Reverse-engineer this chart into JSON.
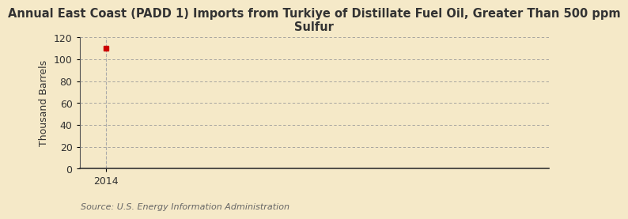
{
  "title": "Annual East Coast (PADD 1) Imports from Turkiye of Distillate Fuel Oil, Greater Than 500 ppm\nSulfur",
  "ylabel": "Thousand Barrels",
  "source": "Source: U.S. Energy Information Administration",
  "x_data": [
    2014
  ],
  "y_data": [
    110
  ],
  "xlim": [
    2013.4,
    2024.0
  ],
  "ylim": [
    0,
    120
  ],
  "yticks": [
    0,
    20,
    40,
    60,
    80,
    100,
    120
  ],
  "xticks": [
    2014
  ],
  "data_color": "#cc0000",
  "background_color": "#f5e9c8",
  "plot_bg_color": "#f5e9c8",
  "grid_color": "#999999",
  "vline_color": "#aaaaaa",
  "title_fontsize": 10.5,
  "axis_fontsize": 9,
  "source_fontsize": 8,
  "marker_size": 4
}
